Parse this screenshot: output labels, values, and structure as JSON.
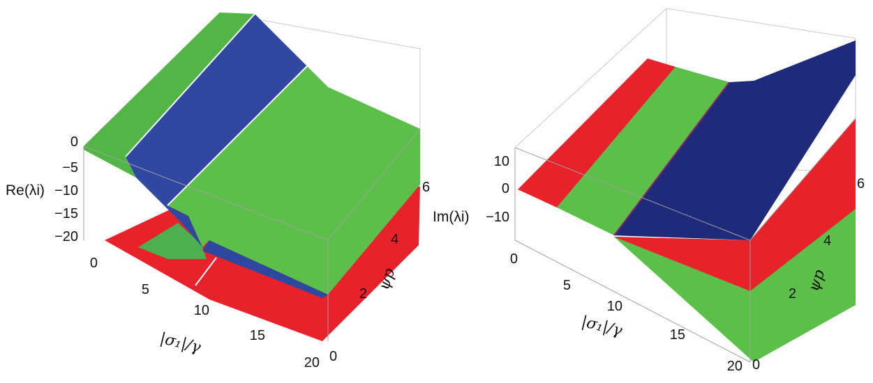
{
  "chart_data": [
    {
      "type": "surface3d",
      "z_label": "Re(λi)",
      "x_label": "|σ₁|/γ",
      "y_label": "ψp",
      "x_ticks": [
        "0",
        "5",
        "10",
        "15",
        "20"
      ],
      "y_ticks": [
        "0",
        "2",
        "4",
        "6"
      ],
      "z_ticks": [
        "0",
        "−5",
        "−10",
        "−15",
        "−20"
      ],
      "xlim": [
        0,
        20
      ],
      "ylim": [
        0,
        6.28
      ],
      "zlim": [
        -22,
        0
      ],
      "surface_colors": {
        "green": "#5cbf4a",
        "blue": "#2e48a0",
        "red": "#e8222a"
      },
      "surfaces": [
        {
          "color": "green",
          "z_at_x": [
            [
              0,
              0
            ],
            [
              4,
              -2
            ],
            [
              8,
              -12
            ],
            [
              9,
              -18
            ],
            [
              11,
              -20
            ]
          ]
        },
        {
          "color": "blue",
          "z_at_x": [
            [
              4,
              0
            ],
            [
              8,
              -5
            ],
            [
              11,
              -20
            ],
            [
              20,
              -21
            ]
          ]
        },
        {
          "color": "green",
          "z_at_x": [
            [
              8,
              0
            ],
            [
              11,
              -6
            ],
            [
              14,
              -10
            ],
            [
              20,
              -15
            ]
          ]
        },
        {
          "color": "red",
          "z_at_x": [
            [
              0,
              -21
            ],
            [
              20,
              -21
            ]
          ]
        }
      ]
    },
    {
      "type": "surface3d",
      "z_label": "Im(λi)",
      "x_label": "|σ₁|/γ",
      "y_label": "ψp",
      "x_ticks": [
        "0",
        "5",
        "10",
        "15",
        "20"
      ],
      "y_ticks": [
        "0",
        "2",
        "4",
        "6"
      ],
      "z_ticks": [
        "10",
        "0",
        "−10"
      ],
      "xlim": [
        0,
        20
      ],
      "ylim": [
        0,
        6.28
      ],
      "zlim": [
        -15,
        15
      ],
      "surface_colors": {
        "green": "#5cbf4a",
        "blue": "#1f2a7a",
        "red": "#e8222a"
      },
      "surfaces": [
        {
          "color": "red",
          "z_at_x": [
            [
              0,
              0
            ],
            [
              5,
              0
            ]
          ]
        },
        {
          "color": "green",
          "z_at_x": [
            [
              5,
              0
            ],
            [
              11,
              0
            ]
          ]
        },
        {
          "color": "blue",
          "z_at_x": [
            [
              11,
              0
            ],
            [
              20,
              10
            ]
          ]
        },
        {
          "color": "red",
          "z_at_x": [
            [
              11,
              0
            ],
            [
              20,
              -10
            ]
          ]
        },
        {
          "color": "green",
          "z_at_x": [
            [
              11,
              0
            ],
            [
              20,
              -20
            ]
          ]
        }
      ]
    }
  ]
}
